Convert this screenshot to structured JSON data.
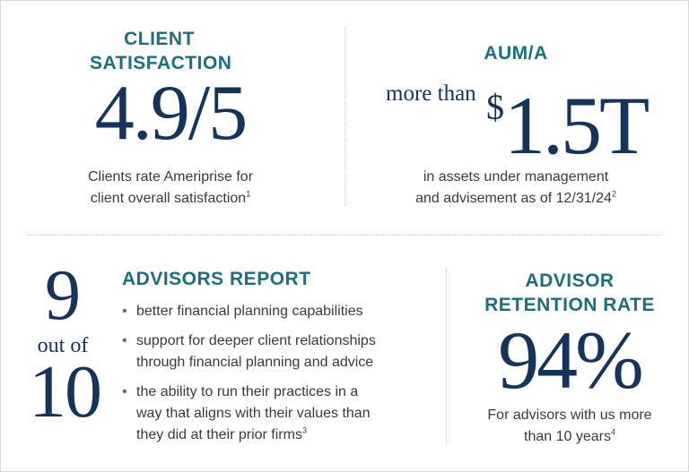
{
  "client_satisfaction": {
    "heading_line1": "CLIENT",
    "heading_line2": "SATISFACTION",
    "value": "4.9/5",
    "desc_line1": "Clients rate Ameriprise for",
    "desc_line2": "client overall satisfaction",
    "footnote": "1"
  },
  "aum": {
    "heading": "AUM/A",
    "prefix": "more than",
    "currency": "$",
    "value": "1.5T",
    "desc_line1": "in assets under management",
    "desc_line2": "and advisement as of 12/31/24",
    "footnote": "2"
  },
  "advisors_report": {
    "big_top": "9",
    "out_of": "out of",
    "big_bottom": "10",
    "heading": "ADVISORS REPORT",
    "items": [
      {
        "line1": "better financial planning capabilities",
        "line2": "",
        "line3": "",
        "footnote": ""
      },
      {
        "line1": "support for deeper client relationships",
        "line2": "through financial planning and advice",
        "line3": "",
        "footnote": ""
      },
      {
        "line1": "the ability to run their practices in a",
        "line2": "way that aligns with their values than",
        "line3": "they did at their prior firms",
        "footnote": "3"
      }
    ]
  },
  "retention": {
    "heading_line1": "ADVISOR",
    "heading_line2": "RETENTION RATE",
    "value": "94%",
    "desc_line1": "For advisors with us more",
    "desc_line2": "than 10 years",
    "footnote": "4"
  },
  "colors": {
    "teal": "#1a6f80",
    "navy": "#14335d",
    "body_text": "#3a3a3a"
  }
}
